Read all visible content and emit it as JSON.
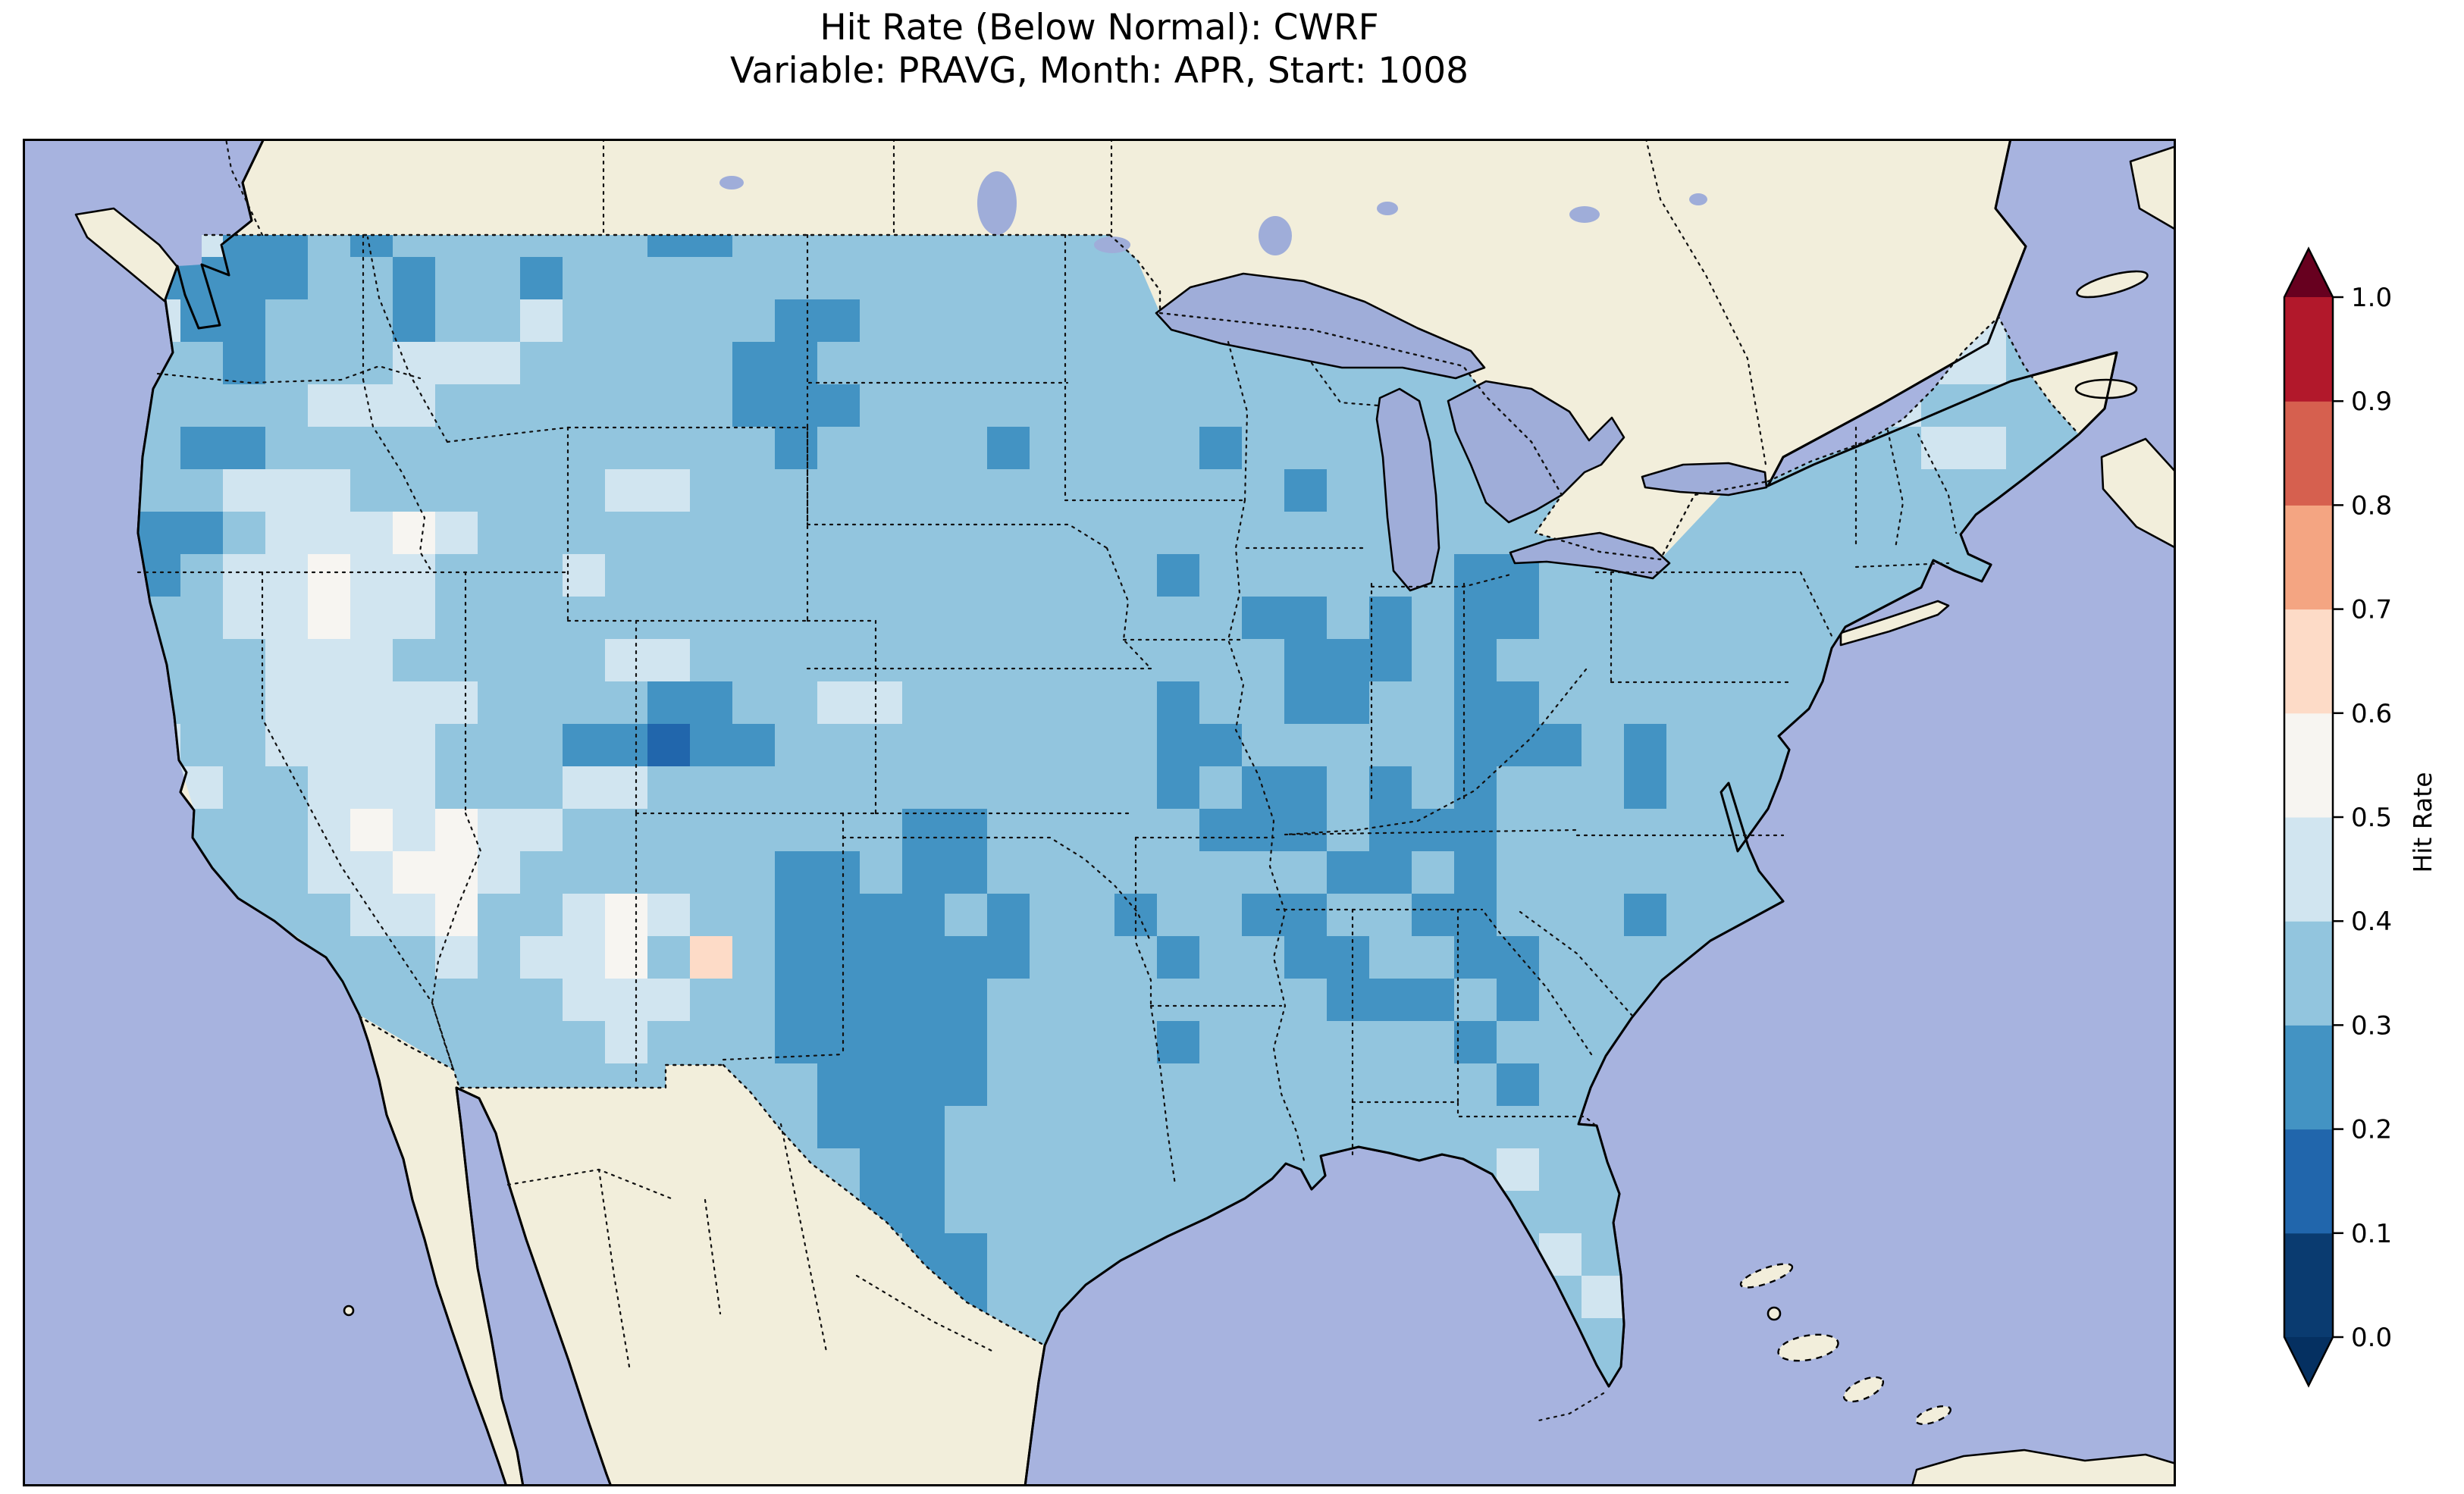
{
  "chart_data": {
    "type": "heatmap",
    "title": "Hit Rate (Below Normal): CWRF",
    "subtitle": "Variable: PRAVG, Month: APR, Start: 1008",
    "model": "CWRF",
    "category": "Below Normal",
    "variable": "PRAVG",
    "month": "APR",
    "start": "1008",
    "colorbar": {
      "label": "Hit Rate",
      "ticks": [
        0.0,
        0.1,
        0.2,
        0.3,
        0.4,
        0.5,
        0.6,
        0.7,
        0.8,
        0.9,
        1.0
      ],
      "boundaries": [
        0.0,
        0.1,
        0.2,
        0.3,
        0.4,
        0.5,
        0.6,
        0.7,
        0.8,
        0.9,
        1.0
      ],
      "colors": [
        "#0a3b70",
        "#2166ac",
        "#4393c3",
        "#92c5de",
        "#d1e5f0",
        "#f7f5f1",
        "#fddbc7",
        "#f4a582",
        "#d6604f",
        "#b2182b"
      ],
      "under_color": "#053061",
      "over_color": "#67001f",
      "extend": "both",
      "colormap": "RdBu_r",
      "orientation": "vertical",
      "position": "right"
    },
    "map": {
      "region": "Continental United States",
      "ocean_color": "#a7b3df",
      "land_color": "#f2eedb",
      "lake_color": "#9fadd9",
      "extent_lon": [
        -127,
        -64
      ],
      "extent_lat": [
        23,
        51
      ],
      "grid_on": false,
      "state_borders": "dotted",
      "coastlines": "solid"
    },
    "grid": {
      "description": "Coarse raster of hit-rate values over CONUS; chars map to bin midpoints, mostly 0.2-0.5 blues with scattered whites (0.5-0.6), one dark 0.1-0.2 cell in west Colorado and a pale pink 0.6-0.7 cell in southern New Mexico",
      "value_map": {
        "1": 0.15,
        "2": 0.25,
        "3": 0.35,
        "4": 0.45,
        "5": 0.55,
        "6": 0.65
      },
      "rows": [
        "333422323333332233333333333333333333333333333333",
        "342222332332333333333333333333333333333333333333",
        "354223332334333332233333333333333333333333334433",
        "343323334443333322333333333333333333333333334433",
        "333333444333333322233333333333333333333333443333",
        "333223333333333332333323333233333333333333334433",
        "333344433333344333333333333332333333333333333333",
        "332234445433333333333333333333333333333333333333",
        "332344544333433333333333332333333223333333333333",
        "333344544333333333333333333322323223333333333333",
        "333334443333344333333333333332223233333333333333",
        "333334444433332233443333332332233223333333333333",
        "334334444333221223333333332233333222323333333333",
        "333433444333443333333333332322323233323333333333",
        "333333454544333333332233333222322233333333333333",
        "333333445543333332232233333333223233333333333333",
        "333333344533454332222323323322332233323333333333",
        "333333333434453632222223332332233223333333333333",
        "333333333333444332222233333333222323333333333333",
        "333333333333343332222233332333333233333333333333",
        "333333333333333333222233333333333323333333333333",
        "333333333333333333222333333333333333333333333333",
        "333333333333333333322333333333333343333333333333",
        "333333333333333333322333333333333433333333333333",
        "333333333333333333332233333333333334333333333333",
        "333333333333333333332233333333333333433333333333",
        "333333333333333333333233333333333333333333333333",
        "333333333333333333333333333333333333333333333333"
      ]
    }
  }
}
